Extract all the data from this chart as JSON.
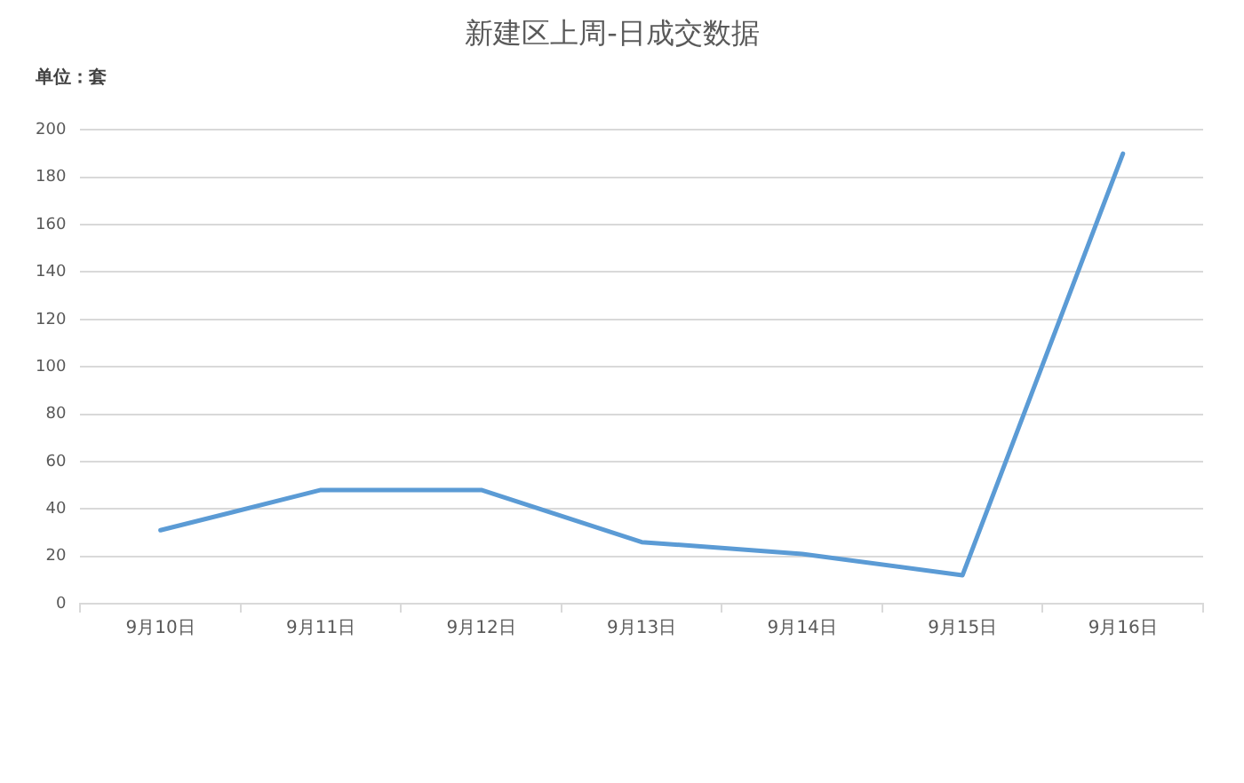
{
  "chart_data": {
    "type": "line",
    "title": "新建区上周-日成交数据",
    "annotations": [
      "单位：套"
    ],
    "categories": [
      "9月10日",
      "9月11日",
      "9月12日",
      "9月13日",
      "9月14日",
      "9月15日",
      "9月16日"
    ],
    "values": [
      31,
      48,
      48,
      26,
      21,
      12,
      190
    ],
    "color": "#5b9bd5",
    "ylim": [
      0,
      200
    ],
    "yticks": [
      0,
      20,
      40,
      60,
      80,
      100,
      120,
      140,
      160,
      180,
      200
    ],
    "grid": "y",
    "marker": "none"
  }
}
